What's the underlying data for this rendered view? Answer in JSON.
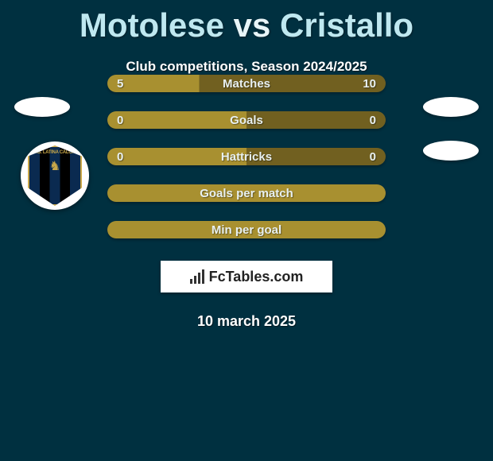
{
  "title": {
    "player1": "Motolese",
    "vs": "vs",
    "player2": "Cristallo"
  },
  "subtitle": "Club competitions, Season 2024/2025",
  "bars": [
    {
      "label": "Matches",
      "left": "5",
      "right": "10",
      "left_pct": 33,
      "show_values": true
    },
    {
      "label": "Goals",
      "left": "0",
      "right": "0",
      "left_pct": 50,
      "show_values": true
    },
    {
      "label": "Hattricks",
      "left": "0",
      "right": "0",
      "left_pct": 50,
      "show_values": true
    },
    {
      "label": "Goals per match",
      "left": "",
      "right": "",
      "left_pct": 100,
      "show_values": false,
      "neutral": true
    },
    {
      "label": "Min per goal",
      "left": "",
      "right": "",
      "left_pct": 100,
      "show_values": false,
      "neutral": true
    }
  ],
  "bar_colors": {
    "left": "#a89030",
    "right": "#716020"
  },
  "branding": "FcTables.com",
  "date": "10 march 2025",
  "crest_text": "U.S. LATINA CALCIO",
  "background_color": "#003040"
}
